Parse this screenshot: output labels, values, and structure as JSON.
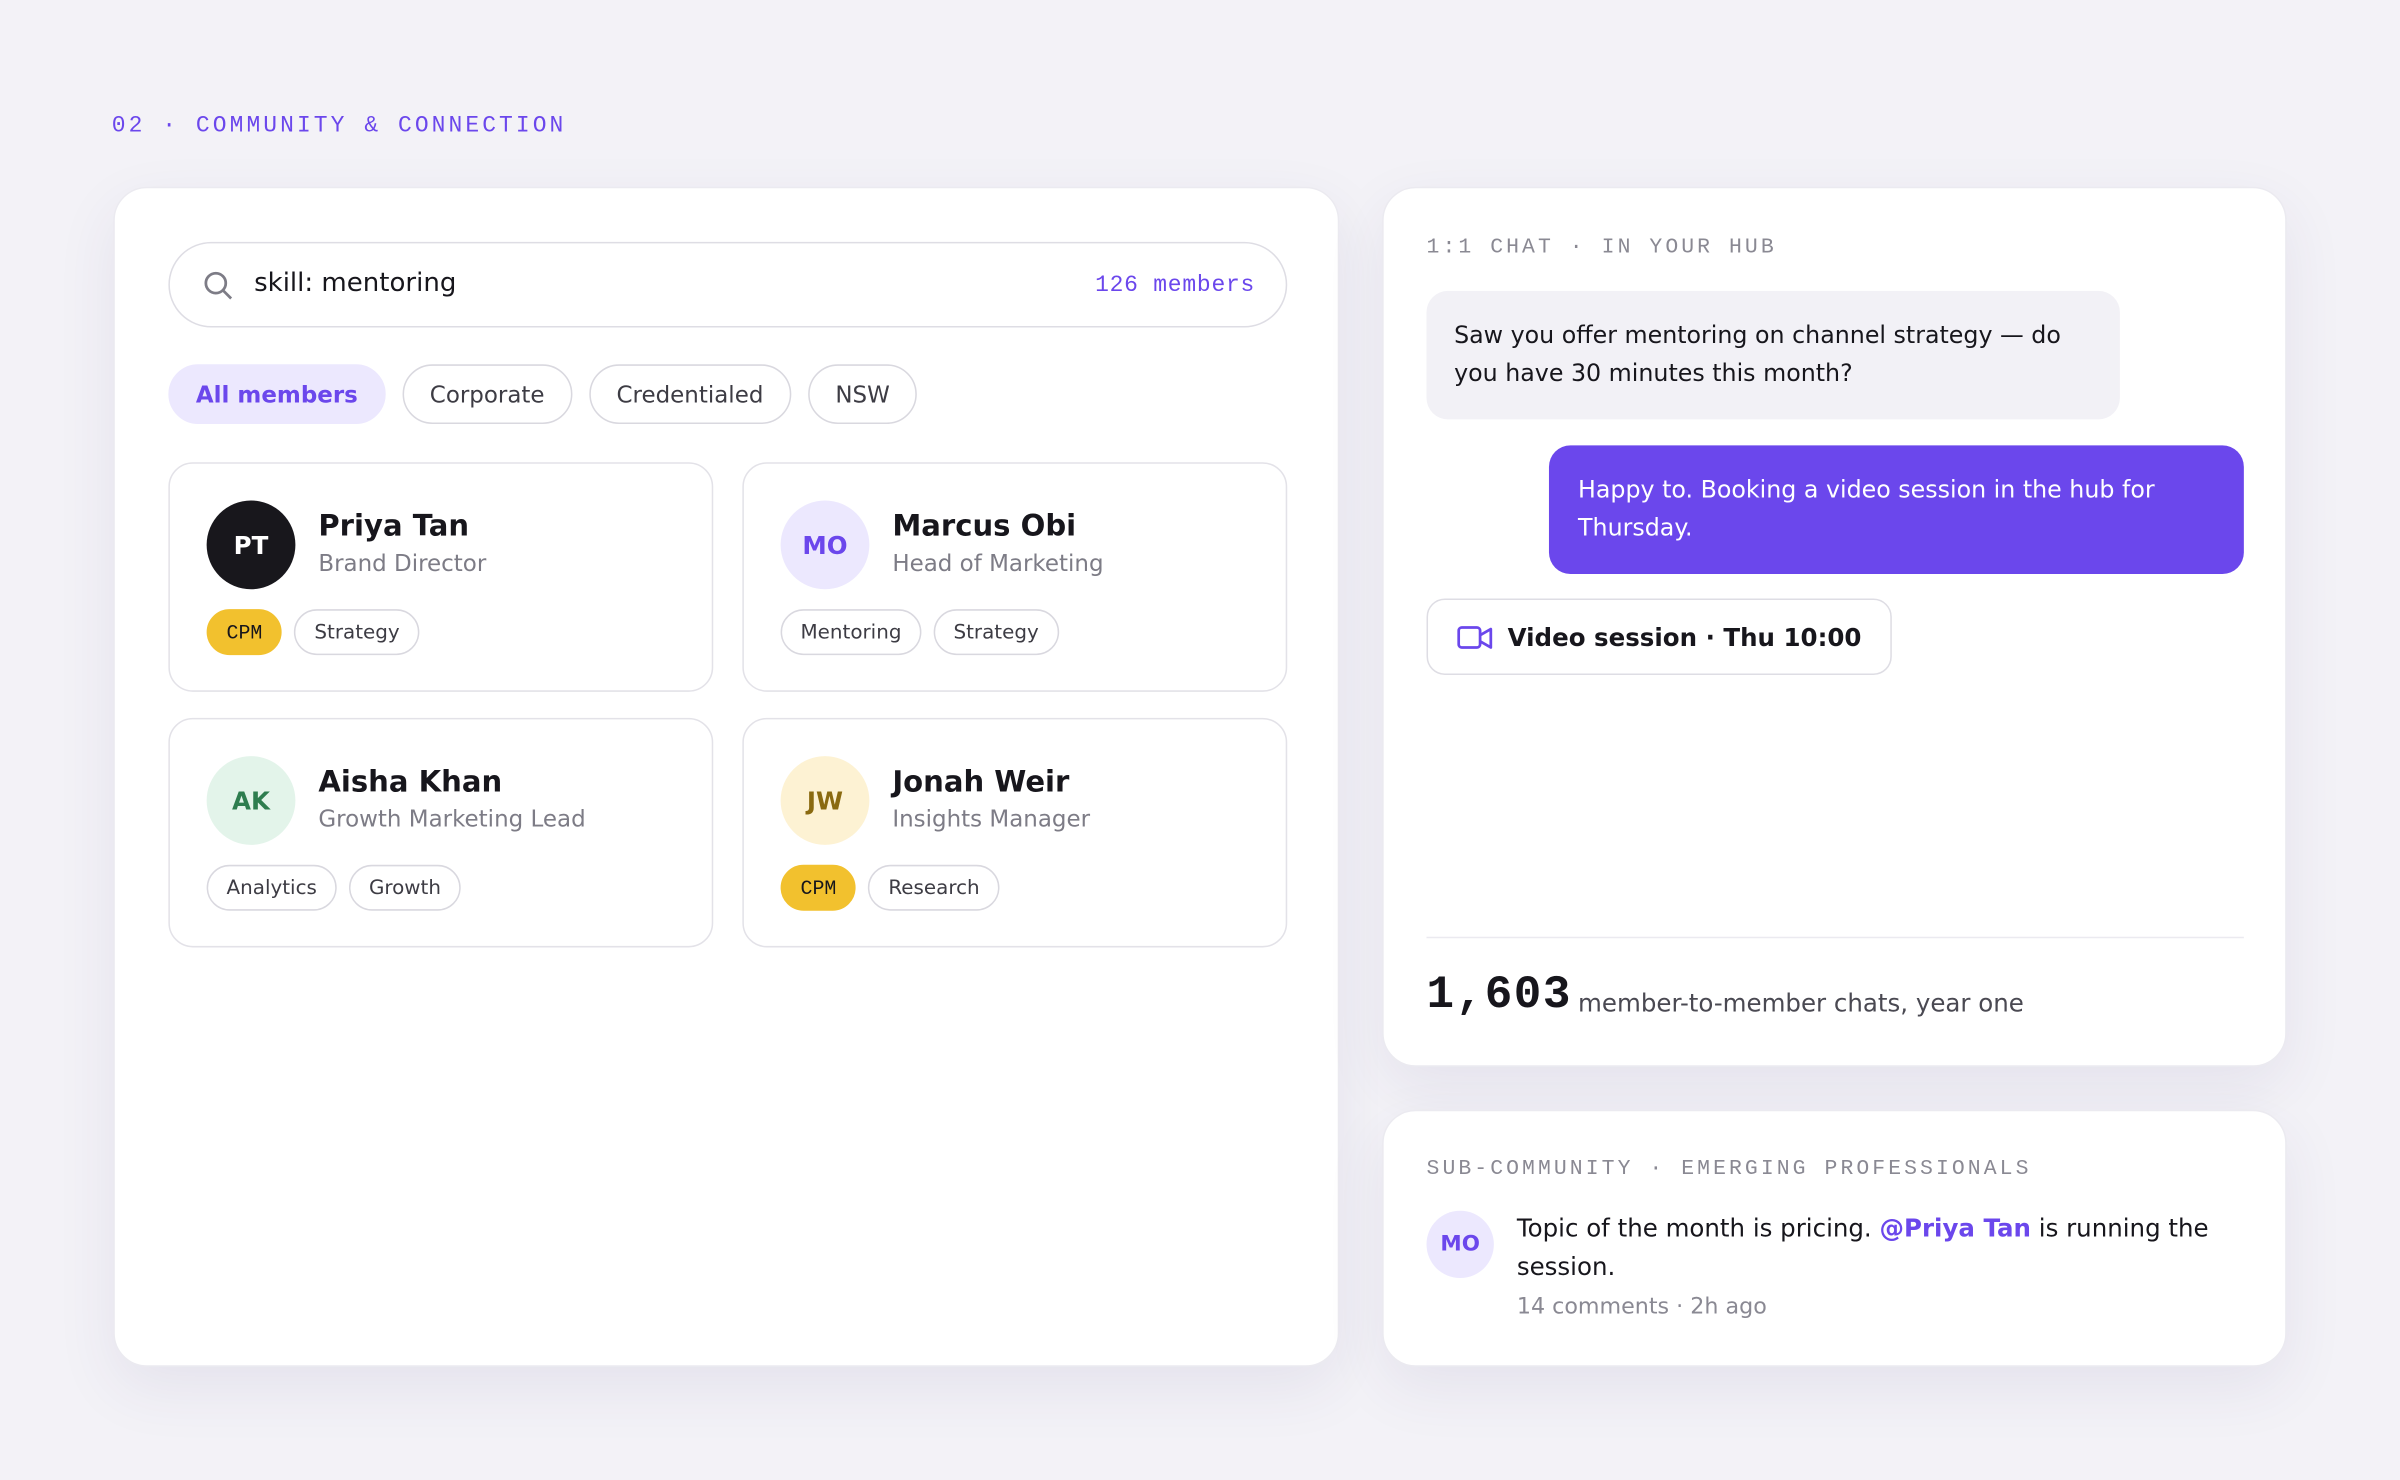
{
  "section_label": "02 · COMMUNITY & CONNECTION",
  "search": {
    "query": "skill: mentoring",
    "count": "126 members"
  },
  "filters": [
    "All members",
    "Corporate",
    "Credentialed",
    "NSW"
  ],
  "members": [
    {
      "initials": "PT",
      "name": "Priya Tan",
      "role": "Brand Director",
      "avatar_bg": "#18171c",
      "avatar_color": "#ffffff",
      "tags": [
        {
          "text": "CPM",
          "fill": "#f2c12e"
        },
        {
          "text": "Strategy"
        }
      ]
    },
    {
      "initials": "MO",
      "name": "Marcus Obi",
      "role": "Head of Marketing",
      "avatar_bg": "#ece8fe",
      "avatar_color": "#6b47ec",
      "tags": [
        {
          "text": "Mentoring"
        },
        {
          "text": "Strategy"
        }
      ]
    },
    {
      "initials": "AK",
      "name": "Aisha Khan",
      "role": "Growth Marketing Lead",
      "avatar_bg": "#e3f4ea",
      "avatar_color": "#2e7d4f",
      "tags": [
        {
          "text": "Analytics"
        },
        {
          "text": "Growth"
        }
      ]
    },
    {
      "initials": "JW",
      "name": "Jonah Weir",
      "role": "Insights Manager",
      "avatar_bg": "#fdf2d3",
      "avatar_color": "#8a6a10",
      "tags": [
        {
          "text": "CPM",
          "fill": "#f2c12e"
        },
        {
          "text": "Research"
        }
      ]
    }
  ],
  "chat": {
    "label": "1:1 CHAT · IN YOUR HUB",
    "messages": [
      "Saw you offer mentoring on channel strategy — do you have 30 minutes this month?",
      "Happy to. Booking a video session in the hub for Thursday."
    ],
    "session": "Video session · Thu 10:00",
    "stat_value": "1,603",
    "stat_label": "member-to-member chats, year one"
  },
  "sub_community": {
    "label": "SUB-COMMUNITY · EMERGING PROFESSIONALS",
    "avatar": "MO",
    "text": "Topic of the month is pricing.",
    "mention": "@Priya Tan",
    "text_end": "is running the session.",
    "meta": "14 comments · 2h ago"
  }
}
